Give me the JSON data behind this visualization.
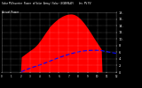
{
  "title": "Solar PV/Inverter  Power  of Solar  Array / Solar  (SGBM&W)       Inv  PV PV",
  "subtitle": "Actual Power",
  "bg_color": "#000000",
  "plot_bg_color": "#000000",
  "grid_color": "#ffffff",
  "red_fill_color": "#ff0000",
  "blue_line_color": "#0000ff",
  "ylim": [
    0,
    1800
  ],
  "xlim": [
    0,
    144
  ],
  "ytick_positions": [
    0,
    200,
    400,
    600,
    800,
    1000,
    1200,
    1400,
    1600,
    1800
  ],
  "ytick_labels": [
    "0",
    "2.",
    "4.",
    "6.",
    "8.",
    "10.",
    "12.",
    "14.",
    "16.",
    "18."
  ],
  "n_points": 145,
  "peak_index": 78,
  "peak_value": 1750,
  "solar_start": 25,
  "solar_end": 125,
  "avg_scale": 650
}
